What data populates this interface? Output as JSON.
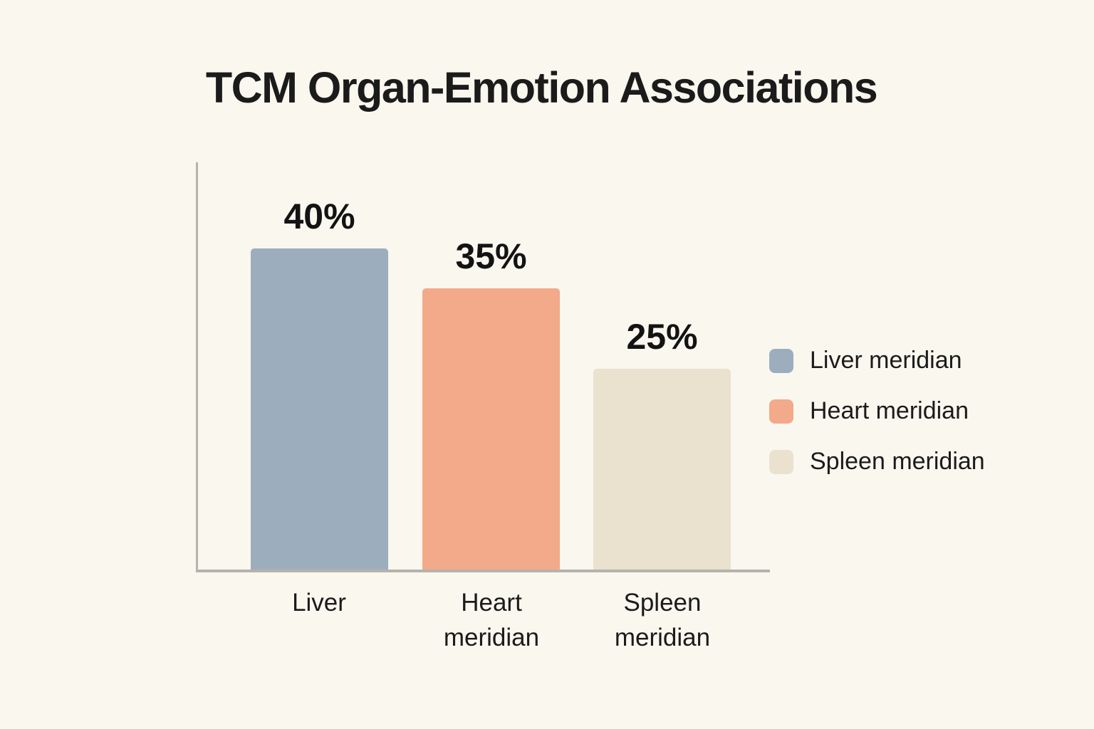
{
  "title": "TCM Organ-Emotion Associations",
  "chart_data": {
    "type": "bar",
    "title": "TCM Organ-Emotion Associations",
    "categories": [
      "Liver",
      "Heart meridian",
      "Spleen meridian"
    ],
    "values": [
      40,
      35,
      25
    ],
    "value_labels": [
      "40%",
      "35%",
      "25%"
    ],
    "unit": "percent",
    "colors": [
      "#9caebe",
      "#f2aa8a",
      "#eae1cf"
    ],
    "xlabel": "",
    "ylabel": "",
    "ylim": [
      0,
      50
    ],
    "grid": false,
    "legend_position": "right",
    "legend_entries": [
      "Liver meridian",
      "Heart meridian",
      "Spleen meridian"
    ]
  },
  "bars": [
    {
      "value_label": "40%",
      "tick_line1": "Liver",
      "tick_line2": ""
    },
    {
      "value_label": "35%",
      "tick_line1": "Heart",
      "tick_line2": "meridian"
    },
    {
      "value_label": "25%",
      "tick_line1": "Spleen",
      "tick_line2": "meridian"
    }
  ],
  "legend": {
    "items": [
      {
        "label": "Liver meridian"
      },
      {
        "label": "Heart meridian"
      },
      {
        "label": "Spleen meridian"
      }
    ]
  },
  "colors": {
    "background": "#faf7ef",
    "text": "#1b1b1b",
    "axis": "#b5b3ac",
    "bar_liver": "#9caebe",
    "bar_heart": "#f2aa8a",
    "bar_spleen": "#eae1cf"
  }
}
